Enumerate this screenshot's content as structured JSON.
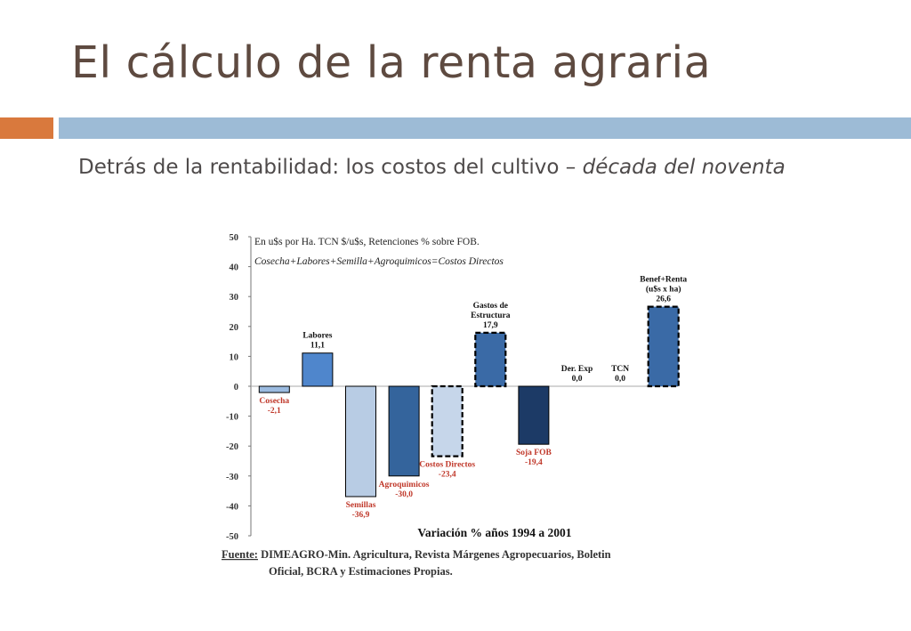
{
  "slide": {
    "title": "El cálculo de la renta agraria",
    "subtitle_main": "Detrás de la rentabilidad: los costos del cultivo – ",
    "subtitle_italic": "década del noventa"
  },
  "colors": {
    "title": "#5e4a40",
    "accent_orange": "#d9793d",
    "accent_blue": "#9dbbd6",
    "subtitle": "#4e4a4a",
    "label_red": "#c0392b",
    "label_black": "#111111"
  },
  "chart_data": {
    "type": "bar",
    "notes": [
      "En u$s por Ha. TCN $/u$s, Retenciones % sobre FOB.",
      "Cosecha+Labores+Semilla+Agroquimicos=Costos Directos"
    ],
    "xlabel": "Variación % años 1994 a 2001",
    "ylim": [
      -50,
      50
    ],
    "yticks": [
      50,
      40,
      30,
      20,
      10,
      0,
      -10,
      -20,
      -30,
      -40,
      -50
    ],
    "grid": false,
    "legend": "none",
    "source_label": "Fuente:",
    "source_line1": " DIMEAGRO-Min. Agricultura, Revista Márgenes Agropecuarios, Boletin",
    "source_line2": "Oficial, BCRA y Estimaciones Propias.",
    "bars": [
      {
        "name": "Cosecha",
        "label_lines": [
          "Cosecha"
        ],
        "value_label": "-2,1",
        "value": -2.1,
        "color": "#9bbbe0",
        "dashed": false,
        "label_color": "#c0392b"
      },
      {
        "name": "Labores",
        "label_lines": [
          "Labores"
        ],
        "value_label": "11,1",
        "value": 11.1,
        "color": "#4f86cc",
        "dashed": false,
        "label_color": "#111111"
      },
      {
        "name": "Semillas",
        "label_lines": [
          "Semillas"
        ],
        "value_label": "-36,9",
        "value": -36.9,
        "color": "#b8cce4",
        "dashed": false,
        "label_color": "#c0392b"
      },
      {
        "name": "Agroquimicos",
        "label_lines": [
          "Agroquimicos"
        ],
        "value_label": "-30,0",
        "value": -30.0,
        "color": "#34649c",
        "dashed": false,
        "label_color": "#c0392b"
      },
      {
        "name": "Costos Directos",
        "label_lines": [
          "Costos Directos"
        ],
        "value_label": "-23,4",
        "value": -23.4,
        "color": "#c6d6ea",
        "dashed": true,
        "label_color": "#c0392b"
      },
      {
        "name": "Gastos de Estructura",
        "label_lines": [
          "Gastos de",
          "Estructura"
        ],
        "value_label": "17,9",
        "value": 17.9,
        "color": "#3a6aa6",
        "dashed": true,
        "label_color": "#111111"
      },
      {
        "name": "Soja FOB",
        "label_lines": [
          "Soja FOB"
        ],
        "value_label": "-19,4",
        "value": -19.4,
        "color": "#1c3a66",
        "dashed": false,
        "label_color": "#c0392b"
      },
      {
        "name": "Der. Exp",
        "label_lines": [
          "Der. Exp"
        ],
        "value_label": "0,0",
        "value": 0.0,
        "color": "#3a6aa6",
        "dashed": false,
        "label_color": "#111111"
      },
      {
        "name": "TCN",
        "label_lines": [
          "TCN"
        ],
        "value_label": "0,0",
        "value": 0.0,
        "color": "#3a6aa6",
        "dashed": false,
        "label_color": "#111111"
      },
      {
        "name": "Benef+Renta",
        "label_lines": [
          "Benef+Renta",
          "(u$s x ha)"
        ],
        "value_label": "26,6",
        "value": 26.6,
        "color": "#3a6aa6",
        "dashed": true,
        "label_color": "#111111"
      }
    ]
  }
}
